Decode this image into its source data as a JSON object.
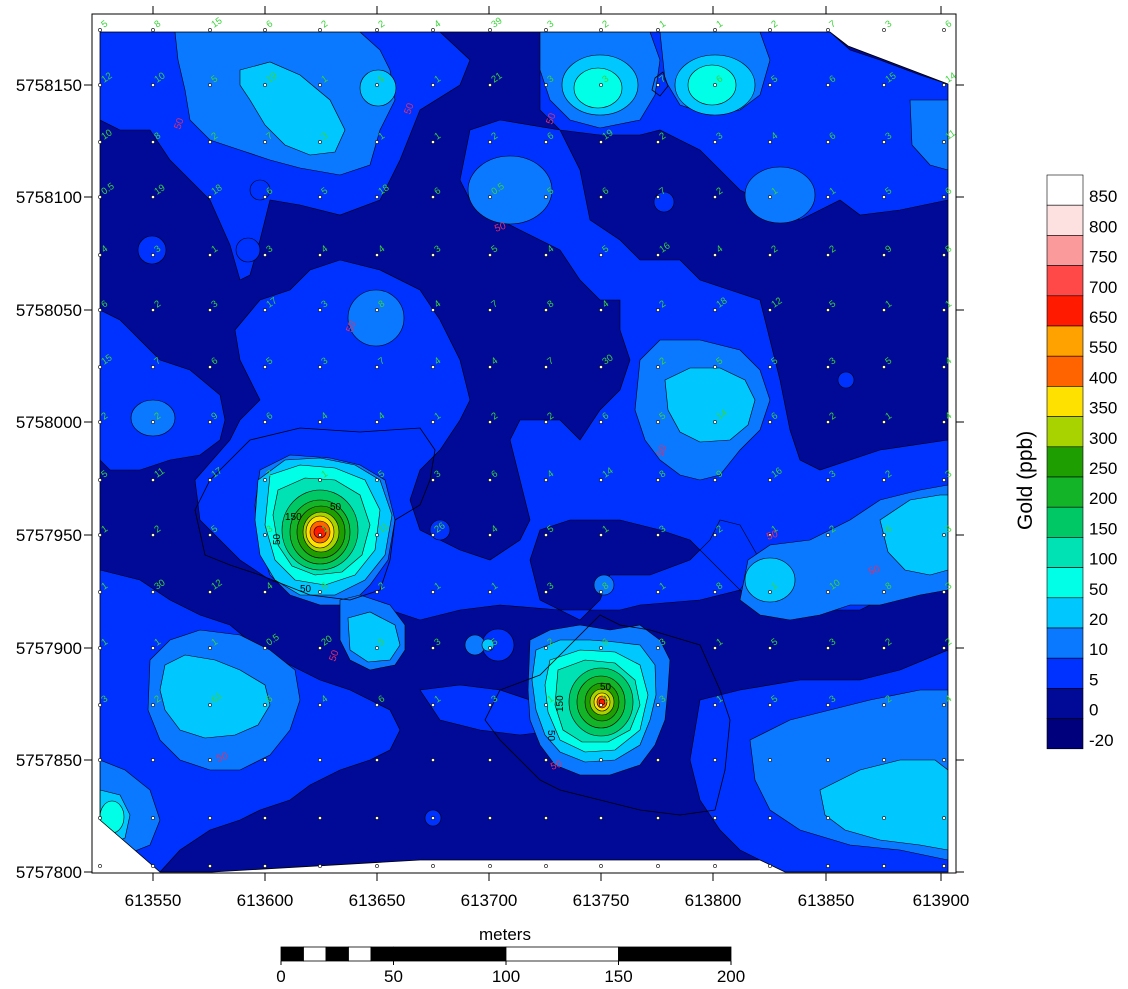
{
  "legend": {
    "title": "Gold (ppb)",
    "labels": [
      "850",
      "800",
      "750",
      "700",
      "650",
      "550",
      "400",
      "350",
      "300",
      "250",
      "200",
      "150",
      "100",
      "50",
      "20",
      "10",
      "5",
      "0",
      "-20"
    ],
    "colors": [
      "#ffffff",
      "#fde1e1",
      "#fb9a9a",
      "#ff4848",
      "#ff1a00",
      "#ffa200",
      "#ff6400",
      "#ffe100",
      "#a8d200",
      "#1e9e00",
      "#14b428",
      "#00c864",
      "#00e1b4",
      "#00ffe6",
      "#00c8ff",
      "#0a78ff",
      "#0032ff",
      "#000a96",
      "#00007d"
    ]
  },
  "axes": {
    "x_ticks": [
      "613550",
      "613600",
      "613650",
      "613700",
      "613750",
      "613800",
      "613850",
      "613900"
    ],
    "y_ticks": [
      "5758150",
      "5758100",
      "5758050",
      "5758000",
      "5757950",
      "5757900",
      "5757850",
      "5757800"
    ]
  },
  "scale_bar": {
    "title": "meters",
    "labels": [
      "0",
      "50",
      "100",
      "150",
      "200"
    ]
  },
  "contour_labels": [
    "50",
    "50",
    "150",
    "50",
    "150",
    "50",
    "50"
  ],
  "contour_labels_red": [
    "50",
    "50",
    "50",
    "50",
    "50",
    "50",
    "50",
    "50",
    "50",
    "50",
    "50"
  ],
  "sample_values": [
    "5",
    "8",
    "15",
    "6",
    "2",
    "2",
    "4",
    "39",
    "3",
    "2",
    "1",
    "1",
    "2",
    "7",
    "3",
    "6",
    "12",
    "10",
    "5",
    "19",
    "1",
    "5",
    "1",
    "21",
    "3",
    "3",
    "7",
    "6",
    "5",
    "6",
    "15",
    "14",
    "10",
    "8",
    "2",
    "7",
    "3",
    "1",
    "1",
    "2",
    "6",
    "19",
    "2",
    "3",
    "4",
    "6",
    "3",
    "11",
    "0.5",
    "19",
    "18",
    "6",
    "5",
    "18",
    "6",
    "0.5",
    "5",
    "6",
    "7",
    "2",
    "1",
    "1",
    "5",
    "6",
    "4",
    "3",
    "1",
    "3",
    "4",
    "4",
    "3",
    "5",
    "4",
    "5",
    "16",
    "4",
    "2",
    "2",
    "9",
    "8",
    "6",
    "2",
    "3",
    "17",
    "3",
    "8",
    "4",
    "7",
    "8",
    "4",
    "2",
    "18",
    "12",
    "5",
    "1",
    "1",
    "15",
    "7",
    "6",
    "5",
    "3",
    "7",
    "4",
    "4",
    "7",
    "30",
    "2",
    "5",
    "5",
    "3",
    "5",
    "4",
    "2",
    "2",
    "9",
    "6",
    "4",
    "4",
    "1",
    "2",
    "2",
    "6",
    "5",
    "14",
    "6",
    "2",
    "1",
    "4",
    "5",
    "11",
    "17",
    "7",
    "1",
    "5",
    "3",
    "6",
    "4",
    "14",
    "8",
    "9",
    "16",
    "3",
    "2",
    "3",
    "1",
    "2",
    "5",
    "3",
    "1",
    "11",
    "26",
    "4",
    "5",
    "1",
    "3",
    "2",
    "1",
    "2",
    "6",
    "3",
    "1",
    "30",
    "12",
    "4",
    "6",
    "2",
    "1",
    "1",
    "3",
    "8",
    "1",
    "8",
    "1",
    "10",
    "8",
    "3",
    "1",
    "1",
    "1",
    "0.5",
    "20",
    "5",
    "3",
    "5",
    "2",
    "6",
    "3",
    "1",
    "5",
    "3",
    "2",
    "2",
    "3",
    "2",
    "61",
    "6",
    "4",
    "6",
    "1",
    "3",
    "1",
    "2",
    "3",
    "1",
    "5",
    "3",
    "2",
    "4"
  ]
}
